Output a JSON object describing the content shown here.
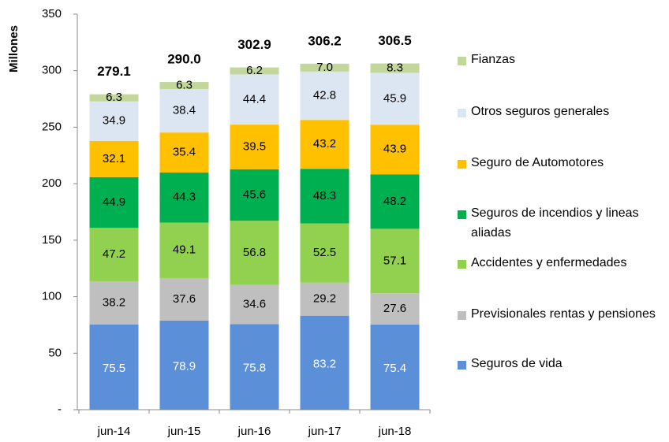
{
  "chart_data": {
    "type": "stacked-bar",
    "y_label": "Millones",
    "categories": [
      "jun-14",
      "jun-15",
      "jun-16",
      "jun-17",
      "jun-18"
    ],
    "series": [
      {
        "name": "Seguros de vida",
        "color": "#5b8fd8",
        "values": [
          75.5,
          78.9,
          75.8,
          83.2,
          75.4
        ]
      },
      {
        "name": "Previsionales rentas  y pensiones",
        "color": "#bfbfbf",
        "values": [
          38.2,
          37.6,
          34.6,
          29.2,
          27.6
        ]
      },
      {
        "name": "Accidentes y enfermedades",
        "color": "#92d050",
        "values": [
          47.2,
          49.1,
          56.8,
          52.5,
          57.1
        ]
      },
      {
        "name": "Seguros de incendios y lineas aliadas",
        "color": "#00b050",
        "values": [
          44.9,
          44.3,
          45.6,
          48.3,
          48.2
        ]
      },
      {
        "name": "Seguro de Automotores",
        "color": "#ffc000",
        "values": [
          32.1,
          35.4,
          39.5,
          43.2,
          43.9
        ]
      },
      {
        "name": "Otros seguros generales",
        "color": "#dce6f2",
        "values": [
          34.9,
          38.4,
          44.4,
          42.8,
          45.9
        ]
      },
      {
        "name": "Fianzas",
        "color": "#c3d69b",
        "values": [
          6.3,
          6.3,
          6.2,
          7.0,
          8.3
        ],
        "value_labels": [
          "6.3",
          "6.3",
          "6.2",
          "7.0",
          "8.3"
        ]
      }
    ],
    "totals": [
      279.1,
      290.0,
      302.9,
      306.2,
      306.5
    ],
    "totals_value_labels": [
      "279.1",
      "290.0",
      "302.9",
      "306.2",
      "306.5"
    ],
    "ylim": [
      0,
      350
    ],
    "yticks": [
      {
        "value": 0,
        "label": "-"
      },
      50,
      100,
      150,
      200,
      250,
      300,
      350
    ],
    "legend": "right"
  }
}
